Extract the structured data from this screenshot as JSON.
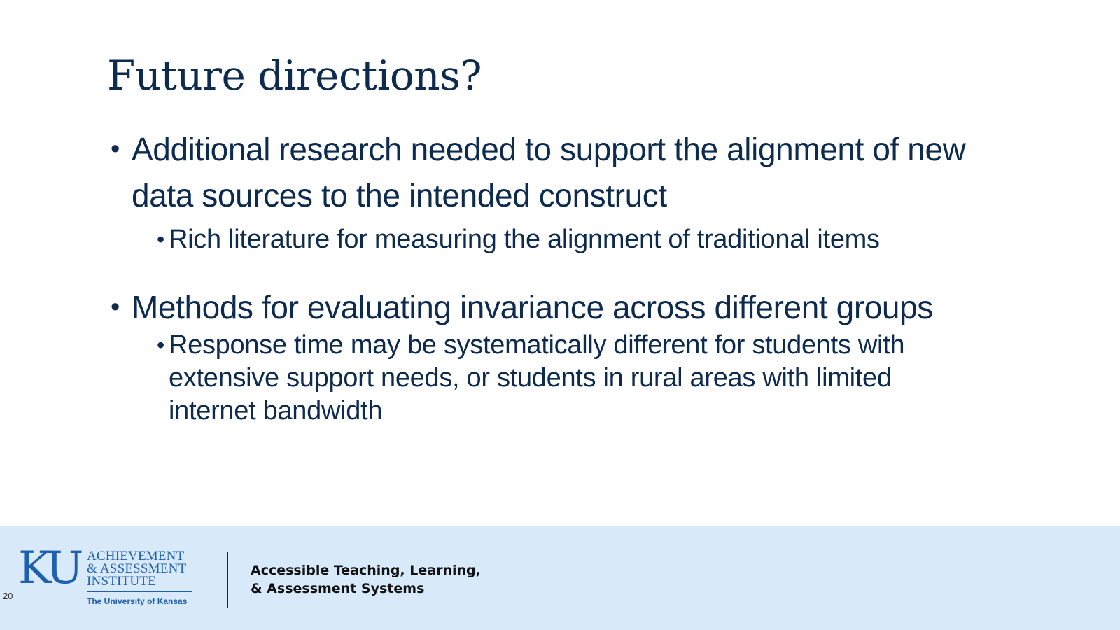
{
  "slide": {
    "title": "Future directions?",
    "bullets": [
      {
        "marker": "•",
        "text": "Additional research needed to support the alignment of new data sources to the intended construct",
        "sub": [
          {
            "marker": "•",
            "text": "Rich literature for measuring the alignment of traditional items"
          }
        ]
      },
      {
        "marker": "•",
        "text": "Methods for evaluating invariance across different groups",
        "sub": [
          {
            "marker": "•",
            "text": "Response time may be systematically different for students with extensive support needs, or students in rural areas with limited internet bandwidth"
          }
        ]
      }
    ]
  },
  "footer": {
    "page_number": "20",
    "logo": {
      "mark": "KU",
      "line1": "ACHIEVEMENT",
      "line2": "& ASSESSMENT",
      "line3": "INSTITUTE",
      "university": "The University of Kansas"
    },
    "tagline_line1": "Accessible Teaching, Learning,",
    "tagline_line2": "& Assessment Systems",
    "background_color": "#d8eafa",
    "logo_color": "#1f5fb0"
  }
}
